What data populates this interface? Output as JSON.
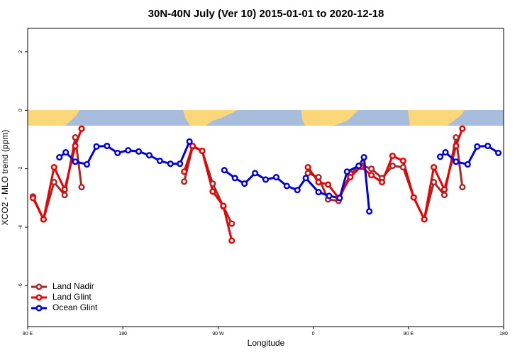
{
  "chart_data": {
    "type": "line",
    "title": "30N-40N July (Ver 10)   2015-01-01 to 2020-12-18",
    "x_label": "Longitude",
    "y_label": "XCO2 - MLO trend (ppm)",
    "xlim": [
      90,
      540
    ],
    "ylim": [
      -7.4,
      2.8
    ],
    "xticks": [
      {
        "value": 90,
        "label": "90 E"
      },
      180,
      {
        "value": 270,
        "label": "90 W"
      },
      {
        "value": 360,
        "label": "0"
      },
      {
        "value": 450,
        "label": "90 E"
      },
      {
        "value": 540,
        "label": "180"
      }
    ],
    "yticks": [
      -6,
      -4,
      -2,
      0,
      2
    ],
    "legend": "bottom-left",
    "series": [
      {
        "name": "Land Nadir",
        "color": "#a52a2a",
        "x": [
          95,
          105,
          115,
          125,
          135,
          141,
          null,
          238,
          246,
          255,
          265,
          275,
          283,
          null,
          355,
          365,
          374,
          384,
          395,
          405,
          415,
          425,
          435,
          445,
          455,
          465,
          474,
          484,
          495,
          501
        ],
        "values": [
          -2.95,
          -3.73,
          -2.46,
          -2.9,
          -0.93,
          -2.63,
          null,
          -2.44,
          -1.24,
          -1.39,
          -2.51,
          -3.29,
          -3.88,
          null,
          -2.15,
          -2.29,
          -3.05,
          -3.1,
          -2.17,
          -1.88,
          -2.0,
          -2.32,
          -1.9,
          -1.95,
          -2.98,
          -3.73,
          -2.46,
          -2.9,
          -0.93,
          -2.63
        ]
      },
      {
        "name": "Land Glint",
        "color": "#ee0000",
        "x": [
          95,
          105,
          115,
          125,
          135,
          141,
          null,
          238,
          246,
          255,
          265,
          275,
          283,
          null,
          355,
          365,
          374,
          384,
          395,
          405,
          415,
          425,
          435,
          445,
          455,
          465,
          474,
          484,
          495,
          501
        ],
        "values": [
          -3.0,
          -3.73,
          -1.95,
          -2.71,
          -1.22,
          -0.63,
          null,
          -2.1,
          -1.22,
          -1.39,
          -2.78,
          -3.27,
          -4.46,
          null,
          -1.95,
          -2.46,
          -2.54,
          -3.0,
          -2.29,
          -1.93,
          -2.22,
          -2.46,
          -1.56,
          -1.73,
          -2.98,
          -3.73,
          -1.95,
          -2.71,
          -1.22,
          -0.63
        ]
      },
      {
        "name": "Ocean Glint",
        "color": "#0000dd",
        "x": [
          120,
          126,
          135,
          146,
          155,
          165,
          175,
          185,
          195,
          205,
          215,
          225,
          234,
          243,
          null,
          276,
          286,
          295,
          305,
          315,
          325,
          335,
          345,
          353,
          365,
          375,
          385,
          392,
          403,
          408,
          413,
          null,
          480,
          485,
          495,
          506,
          515,
          525,
          535
        ],
        "values": [
          -1.61,
          -1.44,
          -1.76,
          -1.85,
          -1.24,
          -1.22,
          -1.46,
          -1.37,
          -1.41,
          -1.54,
          -1.73,
          -1.83,
          -1.83,
          -1.07,
          null,
          -2.05,
          -2.32,
          -2.51,
          -2.15,
          -2.37,
          -2.29,
          -2.59,
          -2.73,
          -2.32,
          -2.8,
          -2.93,
          -3.0,
          -2.1,
          -1.9,
          -1.61,
          -3.46,
          null,
          -1.59,
          -1.44,
          -1.76,
          -1.85,
          -1.24,
          -1.22,
          -1.46
        ]
      }
    ]
  }
}
